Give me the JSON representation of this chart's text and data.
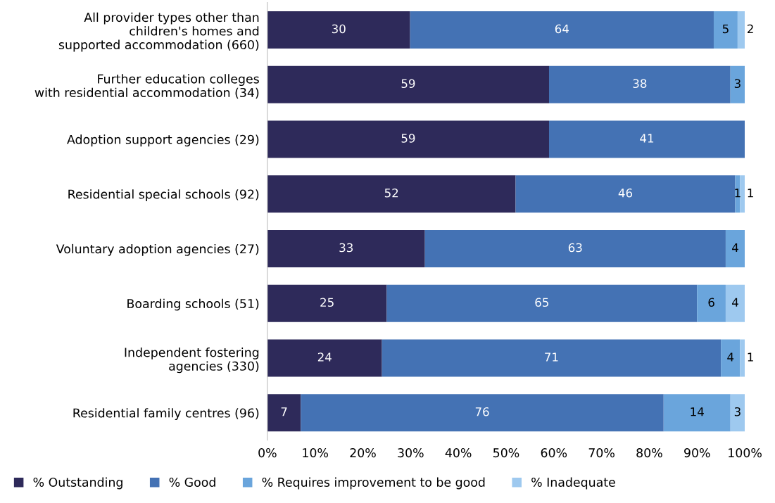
{
  "chart_data": {
    "type": "bar",
    "orientation": "horizontal",
    "stacked": true,
    "categories": [
      "All provider types other than\nchildren's homes and\nsupported accommodation (660)",
      "Further education colleges\nwith residential accommodation (34)",
      "Adoption support agencies (29)",
      "Residential special schools (92)",
      "Voluntary adoption agencies (27)",
      "Boarding schools (51)",
      "Independent fostering\nagencies (330)",
      "Residential family centres (96)"
    ],
    "series": [
      {
        "name": "% Outstanding",
        "color": "#2e2a5a",
        "values": [
          29.9,
          59,
          59,
          52,
          33,
          25,
          24,
          7
        ],
        "value_labels": [
          "30",
          "59",
          "59",
          "52",
          "33",
          "25",
          "24",
          "7"
        ]
      },
      {
        "name": "% Good",
        "color": "#4472b4",
        "values": [
          63.6,
          38,
          41,
          46,
          63,
          65,
          71,
          76
        ],
        "value_labels": [
          "64",
          "38",
          "41",
          "46",
          "63",
          "65",
          "71",
          "76"
        ]
      },
      {
        "name": "% Requires improvement to be good",
        "color": "#6aa5dc",
        "values": [
          5.0,
          3,
          null,
          1,
          4,
          6,
          4,
          14
        ],
        "value_labels": [
          "5",
          "3",
          null,
          "1",
          "4",
          "6",
          "4",
          "14"
        ]
      },
      {
        "name": "% Inadequate",
        "color": "#9ec9ef",
        "values": [
          1.5,
          null,
          null,
          1,
          null,
          4,
          1,
          3
        ],
        "value_labels": [
          "2",
          null,
          null,
          "1",
          null,
          "4",
          "1",
          "3"
        ]
      }
    ],
    "xlim": [
      0,
      100
    ],
    "xticks": [
      {
        "value": 0,
        "label": "0%"
      },
      {
        "value": 10,
        "label": "10%"
      },
      {
        "value": 20,
        "label": "20%"
      },
      {
        "value": 30,
        "label": "30%"
      },
      {
        "value": 40,
        "label": "40%"
      },
      {
        "value": 50,
        "label": "50%"
      },
      {
        "value": 60,
        "label": "60%"
      },
      {
        "value": 70,
        "label": "70%"
      },
      {
        "value": 80,
        "label": "80%"
      },
      {
        "value": 90,
        "label": "90%"
      },
      {
        "value": 100,
        "label": "100%"
      }
    ],
    "grid": false,
    "legend": "bottom"
  }
}
